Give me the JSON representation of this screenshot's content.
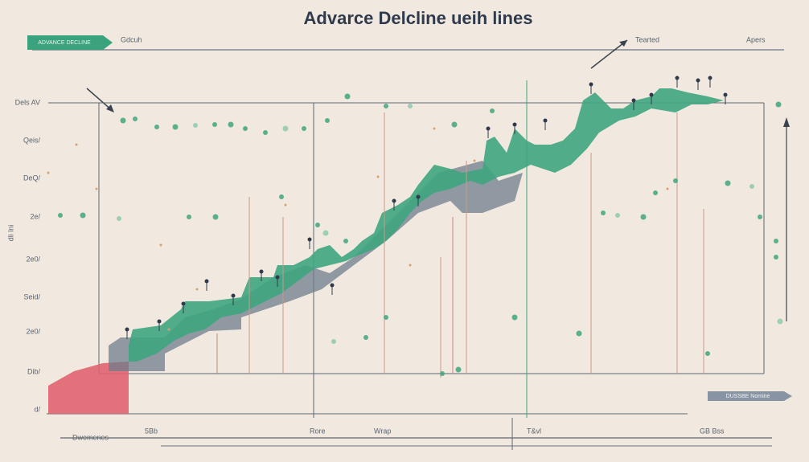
{
  "header": {
    "title": "Advarce Delcline ueih lines",
    "tag": "ADVANCE DECLINE",
    "left_note": "Gdcuh",
    "right_note": "Tearted",
    "corner": "Apers"
  },
  "axis": {
    "label": "dli lni",
    "ticks": [
      "Dels AV",
      "Qeis/",
      "DeQ/",
      "2e/",
      "2e0/",
      "Seid/",
      "2e0/",
      "Dib/",
      "d/"
    ]
  },
  "footer": {
    "legend": "Dwemenes",
    "labels": [
      "5Bb",
      "Rore",
      "Wrap",
      "T&vl",
      "GB Bss"
    ],
    "badge": "DUSSBE Nomine"
  }
}
